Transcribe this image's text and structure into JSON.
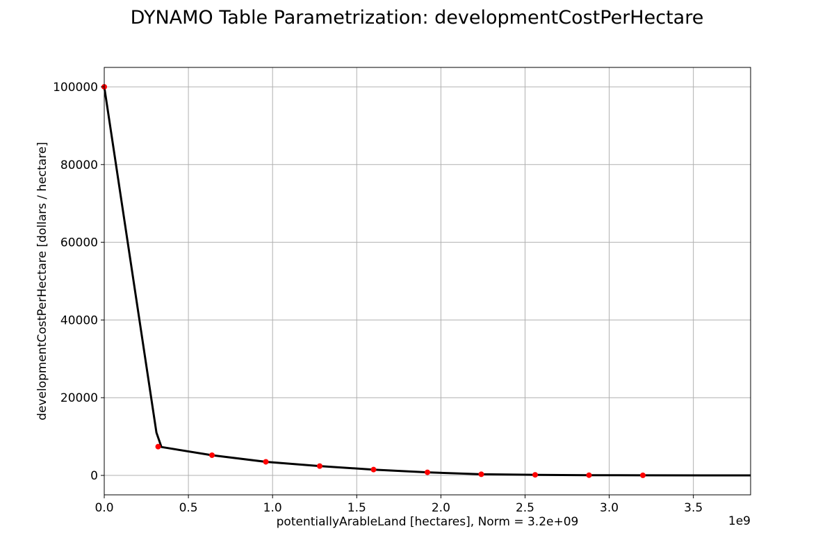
{
  "chart_data": {
    "type": "line",
    "title": "DYNAMO Table Parametrization: developmentCostPerHectare",
    "xlabel": "potentiallyArableLand [hectares], Norm = 3.2e+09",
    "ylabel": "developmentCostPerHectare [dollars / hectare]",
    "x_offset_label": "1e9",
    "xlim": [
      0,
      3.84
    ],
    "ylim": [
      -5000,
      105000
    ],
    "grid": true,
    "x_ticks": [
      0.0,
      0.5,
      1.0,
      1.5,
      2.0,
      2.5,
      3.0,
      3.5
    ],
    "x_tick_labels": [
      "0.0",
      "0.5",
      "1.0",
      "1.5",
      "2.0",
      "2.5",
      "3.0",
      "3.5"
    ],
    "y_ticks": [
      0,
      20000,
      40000,
      60000,
      80000,
      100000
    ],
    "y_tick_labels": [
      "0",
      "20000",
      "40000",
      "60000",
      "80000",
      "100000"
    ],
    "series": [
      {
        "color": "#000000",
        "style": "line",
        "x": [
          0.0,
          0.31,
          0.34,
          0.64,
          0.96,
          1.28,
          1.6,
          1.92,
          2.24,
          2.56,
          2.88,
          3.2,
          3.84
        ],
        "y": [
          100000,
          11000,
          7300,
          5200,
          3500,
          2400,
          1500,
          800,
          300,
          150,
          60,
          20,
          0
        ]
      },
      {
        "color": "#ff0000",
        "style": "points",
        "x": [
          0.0,
          0.32,
          0.64,
          0.96,
          1.28,
          1.6,
          1.92,
          2.24,
          2.56,
          2.88,
          3.2
        ],
        "y": [
          100000,
          7400,
          5200,
          3500,
          2400,
          1500,
          800,
          300,
          150,
          60,
          20
        ]
      }
    ]
  }
}
